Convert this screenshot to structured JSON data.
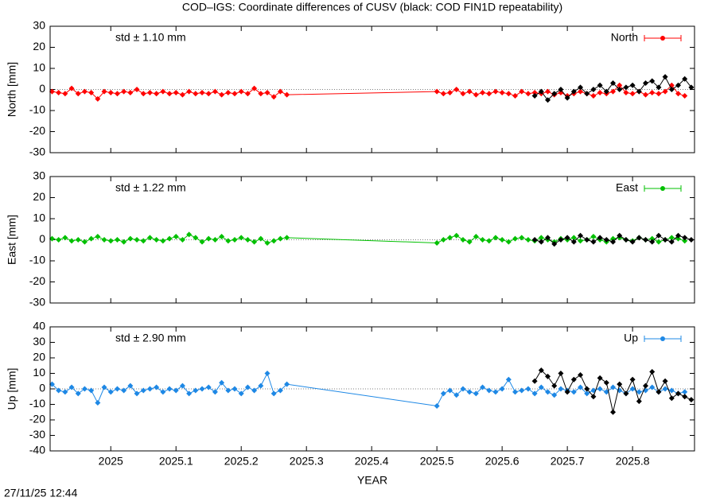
{
  "title": "COD–IGS: Coordinate differences of CUSV (black: COD FIN1D repeatability)",
  "timestamp": "27/11/25 12:44",
  "chart_data": [
    {
      "type": "line",
      "ylabel": "North [mm]",
      "annotation": "std ± 1.10 mm",
      "xlim": [
        2024.907,
        2025.895
      ],
      "xticks": [
        2025,
        2025.1,
        2025.2,
        2025.3,
        2025.4,
        2025.5,
        2025.6,
        2025.7,
        2025.8
      ],
      "ylim": [
        -30,
        30
      ],
      "yticks": [
        -30,
        -20,
        -10,
        0,
        10,
        20,
        30
      ],
      "zero_line": true,
      "series": [
        {
          "name": "North",
          "color": "#ff0000",
          "x": [
            2024.91,
            2024.92,
            2024.93,
            2024.94,
            2024.95,
            2024.96,
            2024.97,
            2024.98,
            2024.99,
            2025,
            2025.01,
            2025.02,
            2025.03,
            2025.04,
            2025.05,
            2025.06,
            2025.07,
            2025.08,
            2025.09,
            2025.1,
            2025.11,
            2025.12,
            2025.13,
            2025.14,
            2025.15,
            2025.16,
            2025.17,
            2025.18,
            2025.19,
            2025.2,
            2025.21,
            2025.22,
            2025.23,
            2025.24,
            2025.25,
            2025.26,
            2025.27,
            2025.5,
            2025.51,
            2025.52,
            2025.53,
            2025.54,
            2025.55,
            2025.56,
            2025.57,
            2025.58,
            2025.59,
            2025.6,
            2025.61,
            2025.62,
            2025.63,
            2025.64,
            2025.65,
            2025.66,
            2025.67,
            2025.68,
            2025.69,
            2025.7,
            2025.71,
            2025.72,
            2025.73,
            2025.74,
            2025.75,
            2025.76,
            2025.77,
            2025.78,
            2025.79,
            2025.8,
            2025.81,
            2025.82,
            2025.83,
            2025.84,
            2025.85,
            2025.86,
            2025.87,
            2025.88
          ],
          "values": [
            -1,
            -1.5,
            -2,
            0.5,
            -2,
            -1,
            -1.5,
            -4.5,
            -1,
            -1.5,
            -2,
            -1,
            -1.5,
            0,
            -2,
            -1.5,
            -2,
            -1,
            -2,
            -1.5,
            -2.5,
            -1,
            -2,
            -1.5,
            -2,
            -1,
            -2.5,
            -1.5,
            -2,
            -1,
            -2,
            0.5,
            -2,
            -1.5,
            -3.5,
            -1,
            -2.5,
            -1,
            -2,
            -1.5,
            0,
            -2,
            -1,
            -2.5,
            -1.5,
            -2,
            -1,
            -1.5,
            -2,
            -3,
            -1,
            -2,
            -1.5,
            -2,
            -1,
            -2.5,
            -1.5,
            -3,
            -2,
            -1,
            -2,
            -3,
            -1.5,
            -2,
            -1,
            2,
            -1.5,
            -2,
            -1,
            -2.5,
            -1.5,
            -2,
            -1,
            2,
            -2,
            -3
          ]
        },
        {
          "color": "#000000",
          "x": [
            2025.65,
            2025.66,
            2025.67,
            2025.68,
            2025.69,
            2025.7,
            2025.71,
            2025.72,
            2025.73,
            2025.74,
            2025.75,
            2025.76,
            2025.77,
            2025.78,
            2025.79,
            2025.8,
            2025.81,
            2025.82,
            2025.83,
            2025.84,
            2025.85,
            2025.86,
            2025.87,
            2025.88,
            2025.89
          ],
          "values": [
            -3,
            -1,
            -5,
            -2,
            0,
            -4,
            -1,
            1,
            -2,
            0,
            2,
            -1,
            3,
            0,
            1,
            2,
            -1,
            3,
            4,
            1,
            6,
            0,
            2,
            5,
            1
          ]
        }
      ]
    },
    {
      "type": "line",
      "ylabel": "East [mm]",
      "annotation": "std ± 1.22 mm",
      "xlim": [
        2024.907,
        2025.895
      ],
      "xticks": [
        2025,
        2025.1,
        2025.2,
        2025.3,
        2025.4,
        2025.5,
        2025.6,
        2025.7,
        2025.8
      ],
      "ylim": [
        -30,
        30
      ],
      "yticks": [
        -30,
        -20,
        -10,
        0,
        10,
        20,
        30
      ],
      "zero_line": true,
      "series": [
        {
          "name": "East",
          "color": "#00c000",
          "x": [
            2024.91,
            2024.92,
            2024.93,
            2024.94,
            2024.95,
            2024.96,
            2024.97,
            2024.98,
            2024.99,
            2025,
            2025.01,
            2025.02,
            2025.03,
            2025.04,
            2025.05,
            2025.06,
            2025.07,
            2025.08,
            2025.09,
            2025.1,
            2025.11,
            2025.12,
            2025.13,
            2025.14,
            2025.15,
            2025.16,
            2025.17,
            2025.18,
            2025.19,
            2025.2,
            2025.21,
            2025.22,
            2025.23,
            2025.24,
            2025.25,
            2025.26,
            2025.27,
            2025.5,
            2025.51,
            2025.52,
            2025.53,
            2025.54,
            2025.55,
            2025.56,
            2025.57,
            2025.58,
            2025.59,
            2025.6,
            2025.61,
            2025.62,
            2025.63,
            2025.64,
            2025.65,
            2025.66,
            2025.67,
            2025.68,
            2025.69,
            2025.7,
            2025.71,
            2025.72,
            2025.73,
            2025.74,
            2025.75,
            2025.76,
            2025.77,
            2025.78,
            2025.79,
            2025.8,
            2025.81,
            2025.82,
            2025.83,
            2025.84,
            2025.85,
            2025.86,
            2025.87,
            2025.88
          ],
          "values": [
            0.5,
            0,
            1,
            -0.5,
            0,
            -1,
            0.5,
            1.5,
            0,
            -0.5,
            0,
            -1,
            0.5,
            0,
            -0.5,
            1,
            0,
            -0.5,
            0.5,
            1.5,
            0,
            2.5,
            1,
            -1,
            0.5,
            0,
            1.5,
            -0.5,
            0,
            1,
            0,
            -1,
            0.5,
            -1.5,
            -0.5,
            0.5,
            1,
            -1.5,
            0,
            1,
            2,
            0,
            -1,
            1.5,
            0,
            -0.5,
            1,
            0,
            -1,
            0.5,
            1,
            0,
            -0.5,
            1,
            0,
            -1,
            0.5,
            0,
            1,
            -0.5,
            0,
            1.5,
            0,
            -1,
            0.5,
            1,
            0,
            -0.5,
            1,
            0,
            0.5,
            -1,
            0,
            1,
            0.5,
            -0.5
          ]
        },
        {
          "color": "#000000",
          "x": [
            2025.65,
            2025.66,
            2025.67,
            2025.68,
            2025.69,
            2025.7,
            2025.71,
            2025.72,
            2025.73,
            2025.74,
            2025.75,
            2025.76,
            2025.77,
            2025.78,
            2025.79,
            2025.8,
            2025.81,
            2025.82,
            2025.83,
            2025.84,
            2025.85,
            2025.86,
            2025.87,
            2025.88,
            2025.89
          ],
          "values": [
            0,
            -1,
            1,
            -2,
            0,
            1,
            -1,
            2,
            0,
            -1,
            1,
            0,
            -1,
            2,
            0,
            -1,
            1,
            0,
            -1,
            2,
            0,
            -1,
            2,
            1,
            0
          ]
        }
      ]
    },
    {
      "type": "line",
      "ylabel": "Up [mm]",
      "xlabel": "YEAR",
      "annotation": "std ± 2.90 mm",
      "xlim": [
        2024.907,
        2025.895
      ],
      "xticks": [
        2025,
        2025.1,
        2025.2,
        2025.3,
        2025.4,
        2025.5,
        2025.6,
        2025.7,
        2025.8
      ],
      "ylim": [
        -40,
        40
      ],
      "yticks": [
        -40,
        -30,
        -20,
        -10,
        0,
        10,
        20,
        30,
        40
      ],
      "zero_line": true,
      "series": [
        {
          "name": "Up",
          "color": "#1e88e5",
          "x": [
            2024.91,
            2024.92,
            2024.93,
            2024.94,
            2024.95,
            2024.96,
            2024.97,
            2024.98,
            2024.99,
            2025,
            2025.01,
            2025.02,
            2025.03,
            2025.04,
            2025.05,
            2025.06,
            2025.07,
            2025.08,
            2025.09,
            2025.1,
            2025.11,
            2025.12,
            2025.13,
            2025.14,
            2025.15,
            2025.16,
            2025.17,
            2025.18,
            2025.19,
            2025.2,
            2025.21,
            2025.22,
            2025.23,
            2025.24,
            2025.25,
            2025.26,
            2025.27,
            2025.5,
            2025.51,
            2025.52,
            2025.53,
            2025.54,
            2025.55,
            2025.56,
            2025.57,
            2025.58,
            2025.59,
            2025.6,
            2025.61,
            2025.62,
            2025.63,
            2025.64,
            2025.65,
            2025.66,
            2025.67,
            2025.68,
            2025.69,
            2025.7,
            2025.71,
            2025.72,
            2025.73,
            2025.74,
            2025.75,
            2025.76,
            2025.77,
            2025.78,
            2025.79,
            2025.8,
            2025.81,
            2025.82,
            2025.83,
            2025.84,
            2025.85,
            2025.86,
            2025.87,
            2025.88
          ],
          "values": [
            3,
            -1,
            -2,
            1,
            -3,
            0,
            -1,
            -9,
            1,
            -2,
            0,
            -1,
            2,
            -3,
            -1,
            0,
            1,
            -2,
            0,
            -1,
            2,
            -3,
            -1,
            0,
            1,
            -2,
            4,
            -1,
            0,
            -3,
            1,
            -1,
            2,
            10,
            -3,
            -1,
            3,
            -11,
            -3,
            -1,
            -4,
            0,
            -2,
            -3,
            1,
            -1,
            -2,
            0,
            6,
            -2,
            -1,
            0,
            -3,
            1,
            -2,
            -4,
            0,
            -1,
            -2,
            1,
            -3,
            -1,
            0,
            -2,
            1,
            -1,
            -3,
            0,
            -2,
            -1,
            1,
            -2,
            0,
            -1,
            -3,
            -2
          ]
        },
        {
          "color": "#000000",
          "x": [
            2025.65,
            2025.66,
            2025.67,
            2025.68,
            2025.69,
            2025.7,
            2025.71,
            2025.72,
            2025.73,
            2025.74,
            2025.75,
            2025.76,
            2025.77,
            2025.78,
            2025.79,
            2025.8,
            2025.81,
            2025.82,
            2025.83,
            2025.84,
            2025.85,
            2025.86,
            2025.87,
            2025.88,
            2025.89
          ],
          "values": [
            5,
            12,
            8,
            2,
            10,
            -2,
            6,
            9,
            0,
            -5,
            7,
            4,
            -15,
            3,
            -3,
            6,
            -8,
            2,
            11,
            -2,
            5,
            -6,
            -3,
            -5,
            -7
          ]
        }
      ]
    }
  ]
}
